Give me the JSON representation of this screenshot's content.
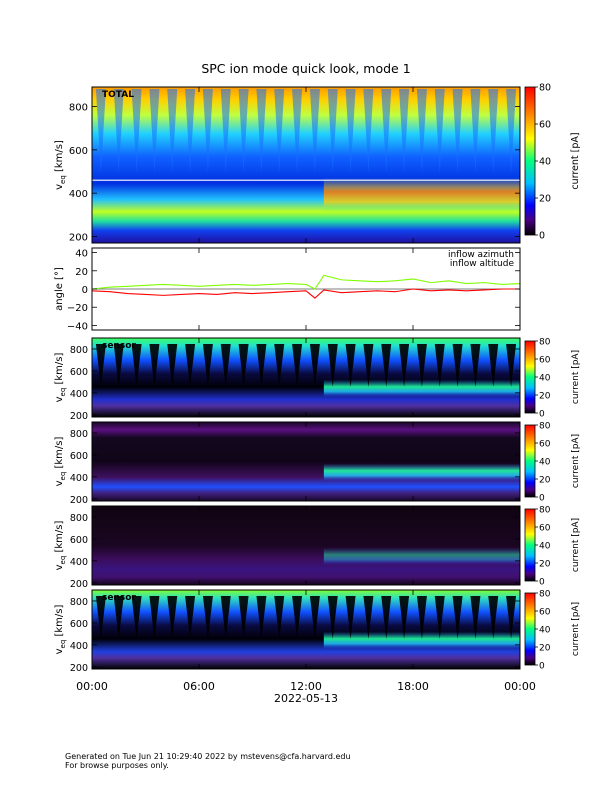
{
  "title": "SPC ion mode quick look, mode 1",
  "footer": {
    "line1": "Generated on Tue Jun 21 10:29:40 2022 by mstevens@cfa.harvard.edu",
    "line2": "For browse purposes only."
  },
  "chart_data": [
    {
      "type": "heatmap",
      "panel": "total",
      "label": "TOTAL",
      "ylabel": "v_eq [km/s]",
      "ylim": [
        170,
        890
      ],
      "yticks": [
        200,
        400,
        600,
        800
      ],
      "colorbar_label": "current [pA]",
      "clim": [
        0,
        80
      ],
      "cticks": [
        0,
        20,
        40,
        60,
        80
      ]
    },
    {
      "type": "line",
      "panel": "angle",
      "ylabel": "angle [°]",
      "ylim": [
        -45,
        45
      ],
      "yticks": [
        -40,
        -20,
        0,
        20,
        40
      ],
      "legend": "top-right",
      "series": [
        {
          "name": "inflow azimuth",
          "color": "#ff0000",
          "x_hours": [
            0,
            1,
            2,
            3,
            4,
            5,
            6,
            7,
            8,
            9,
            10,
            11,
            12,
            12.5,
            13,
            14,
            15,
            16,
            17,
            18,
            19,
            20,
            21,
            22,
            23,
            24
          ],
          "values": [
            -2,
            -3,
            -5,
            -6,
            -7,
            -6,
            -5,
            -6,
            -4,
            -5,
            -4,
            -3,
            -2,
            -10,
            -1,
            -4,
            -3,
            -2,
            -3,
            0,
            -2,
            -1,
            -2,
            -1,
            0,
            0
          ]
        },
        {
          "name": "inflow altitude",
          "color": "#7fff00",
          "x_hours": [
            0,
            1,
            2,
            3,
            4,
            5,
            6,
            7,
            8,
            9,
            10,
            11,
            12,
            12.5,
            13,
            14,
            15,
            16,
            17,
            18,
            19,
            20,
            21,
            22,
            23,
            24
          ],
          "values": [
            0,
            2,
            3,
            4,
            5,
            4,
            3,
            4,
            5,
            4,
            5,
            6,
            5,
            0,
            15,
            10,
            9,
            8,
            9,
            11,
            7,
            9,
            6,
            7,
            5,
            6
          ]
        }
      ]
    },
    {
      "type": "heatmap",
      "panel": "sensor1",
      "label": "sensor",
      "ylabel": "v_eq [km/s]",
      "ylim": [
        180,
        900
      ],
      "yticks": [
        200,
        400,
        600,
        800
      ],
      "colorbar_label": "current [pA]",
      "clim": [
        0,
        80
      ],
      "cticks": [
        0,
        20,
        40,
        60,
        80
      ]
    },
    {
      "type": "heatmap",
      "panel": "sensor2",
      "ylabel": "v_eq [km/s]",
      "ylim": [
        180,
        900
      ],
      "yticks": [
        200,
        400,
        600,
        800
      ],
      "colorbar_label": "current [pA]",
      "clim": [
        0,
        80
      ],
      "cticks": [
        0,
        20,
        40,
        60,
        80
      ]
    },
    {
      "type": "heatmap",
      "panel": "sensor3",
      "ylabel": "v_eq [km/s]",
      "ylim": [
        180,
        900
      ],
      "yticks": [
        200,
        400,
        600,
        800
      ],
      "colorbar_label": "current [pA]",
      "clim": [
        0,
        80
      ],
      "cticks": [
        0,
        20,
        40,
        60,
        80
      ]
    },
    {
      "type": "heatmap",
      "panel": "sensor4",
      "label": "sensor",
      "ylabel": "v_eq [km/s]",
      "ylim": [
        180,
        900
      ],
      "yticks": [
        200,
        400,
        600,
        800
      ],
      "colorbar_label": "current [pA]",
      "clim": [
        0,
        80
      ],
      "cticks": [
        0,
        20,
        40,
        60,
        80
      ]
    }
  ],
  "x_axis": {
    "ticks": [
      "00:00",
      "06:00",
      "12:00",
      "18:00",
      "00:00"
    ],
    "date_label": "2022-05-13",
    "range_hours": [
      0,
      24
    ]
  },
  "colors": {
    "text": "#000000",
    "background": "#ffffff"
  }
}
